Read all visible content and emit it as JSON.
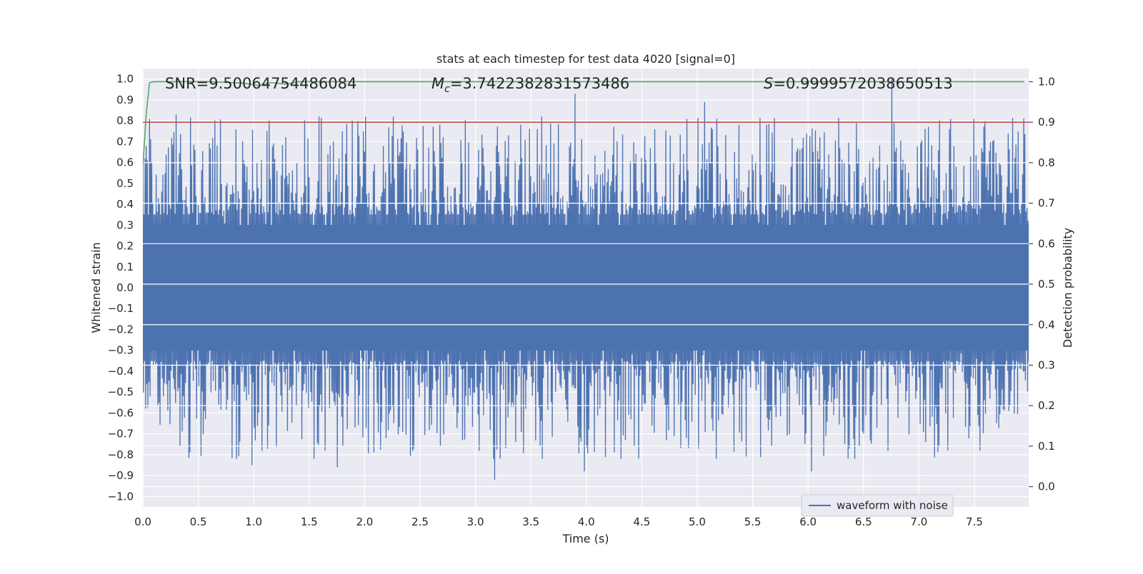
{
  "chart_data": {
    "type": "line",
    "title": "stats at each timestep for test data 4020 [signal=0]",
    "xlabel": "Time (s)",
    "ylabel_left": "Whitened strain",
    "ylabel_right": "Detection probability",
    "xlim": [
      0.0,
      7.99
    ],
    "ylim_left": [
      -1.05,
      1.05
    ],
    "ylim_right": [
      -0.05,
      1.0325
    ],
    "x_ticks": [
      "0.0",
      "0.5",
      "1.0",
      "1.5",
      "2.0",
      "2.5",
      "3.0",
      "3.5",
      "4.0",
      "4.5",
      "5.0",
      "5.5",
      "6.0",
      "6.5",
      "7.0",
      "7.5"
    ],
    "y_ticks_left": [
      "1.0",
      "0.9",
      "0.8",
      "0.7",
      "0.6",
      "0.5",
      "0.4",
      "0.3",
      "0.2",
      "0.1",
      "0.0",
      "−0.1",
      "−0.2",
      "−0.3",
      "−0.4",
      "−0.5",
      "−0.6",
      "−0.7",
      "−0.8",
      "−0.9",
      "−1.0"
    ],
    "y_ticks_right": [
      "1.0",
      "0.9",
      "0.8",
      "0.7",
      "0.6",
      "0.5",
      "0.4",
      "0.3",
      "0.2",
      "0.1",
      "0.0"
    ],
    "grid": true,
    "legend": {
      "entries": [
        "waveform with noise"
      ],
      "placement": "lower-right"
    },
    "annotations": {
      "snr": "SNR=9.50064754486084",
      "mc_symbol": "M",
      "mc_sub": "c",
      "mc_value": "=3.7422382831573486",
      "s_symbol": "S",
      "s_value": "=0.9999572038650513"
    },
    "series": [
      {
        "name": "waveform with noise",
        "axis": "left",
        "color": "#4c72b0",
        "x_range": [
          0.0,
          7.99
        ],
        "samples": 1600,
        "core_amplitude": 0.35,
        "envelope_mean": 0.45,
        "notable_positive_peaks": [
          [
            0.3,
            0.83
          ],
          [
            3.9,
            0.93
          ],
          [
            5.07,
            0.89
          ],
          [
            6.76,
            1.0
          ],
          [
            7.95,
            0.81
          ]
        ],
        "notable_negative_peaks": [
          [
            0.33,
            -0.76
          ],
          [
            0.98,
            -0.85
          ],
          [
            1.75,
            -0.86
          ],
          [
            3.17,
            -0.92
          ],
          [
            3.98,
            -0.88
          ],
          [
            5.17,
            -0.82
          ],
          [
            6.03,
            -0.88
          ],
          [
            6.37,
            -0.77
          ]
        ]
      },
      {
        "name": "detection probability",
        "axis": "right",
        "color": "#55a868",
        "x": [
          0.0,
          0.03,
          0.06,
          0.1,
          0.3,
          0.6,
          0.9,
          1.05,
          1.15,
          1.3,
          1.4,
          2.0,
          3.0,
          4.0,
          5.0,
          6.0,
          7.0,
          7.95
        ],
        "y": [
          0.79,
          0.92,
          0.998,
          1.0,
          1.0,
          1.0,
          0.997,
          0.99,
          0.998,
          0.994,
          1.0,
          1.0,
          1.0,
          1.0,
          1.0,
          1.0,
          1.0,
          1.0
        ]
      },
      {
        "name": "threshold",
        "axis": "right",
        "color": "#c44e52",
        "x": [
          0.0,
          7.99
        ],
        "y": [
          0.9,
          0.9
        ]
      }
    ]
  }
}
